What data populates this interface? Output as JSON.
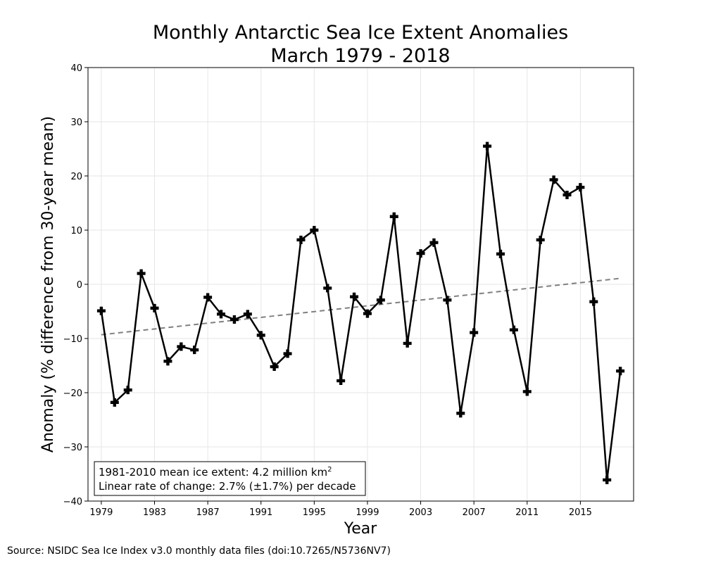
{
  "chart_data": {
    "type": "line",
    "title_line1": "Monthly Antarctic Sea Ice Extent Anomalies",
    "title_line2": "March 1979 - 2018",
    "xlabel": "Year",
    "ylabel": "Anomaly (% difference from 30-year mean)",
    "xlim": [
      1978.0,
      2019.0
    ],
    "ylim": [
      -40,
      40
    ],
    "x_ticks": [
      1979,
      1983,
      1987,
      1991,
      1995,
      1999,
      2003,
      2007,
      2011,
      2015
    ],
    "y_ticks": [
      -40,
      -30,
      -20,
      -10,
      0,
      10,
      20,
      30,
      40
    ],
    "y_tick_labels": [
      "−40",
      "−30",
      "−20",
      "−10",
      "0",
      "10",
      "20",
      "30",
      "40"
    ],
    "grid": true,
    "series": [
      {
        "color": "#000000",
        "marker": "plus",
        "x": [
          1979,
          1980,
          1981,
          1982,
          1983,
          1984,
          1985,
          1986,
          1987,
          1988,
          1989,
          1990,
          1991,
          1992,
          1993,
          1994,
          1995,
          1996,
          1997,
          1998,
          1999,
          2000,
          2001,
          2002,
          2003,
          2004,
          2005,
          2006,
          2007,
          2008,
          2009,
          2010,
          2011,
          2012,
          2013,
          2014,
          2015,
          2016,
          2017,
          2018
        ],
        "values": [
          -4.9,
          -21.8,
          -19.5,
          2.0,
          -4.4,
          -14.2,
          -11.5,
          -12.1,
          -2.4,
          -5.5,
          -6.5,
          -5.5,
          -9.4,
          -15.2,
          -12.8,
          8.2,
          10.0,
          -0.7,
          -17.8,
          -2.3,
          -5.4,
          -2.9,
          12.5,
          -10.9,
          5.7,
          7.7,
          -2.9,
          -23.8,
          -8.9,
          25.5,
          5.6,
          -8.4,
          -19.8,
          8.2,
          19.3,
          16.5,
          17.9,
          -3.2,
          -36.1,
          -16.0
        ]
      }
    ],
    "trendline": {
      "color": "#808080",
      "style": "dashed",
      "x": [
        1979,
        2018
      ],
      "values": [
        -9.3,
        1.1
      ]
    },
    "annotation": {
      "line1_prefix": "1981-2010 mean ice extent: 4.2 million km",
      "line1_superscript": "2",
      "line2": "Linear rate of change: 2.7% (±1.7%) per decade",
      "position": "lower-left"
    },
    "source": "Source: NSIDC Sea Ice Index v3.0 monthly data files (doi:10.7265/N5736NV7)"
  }
}
